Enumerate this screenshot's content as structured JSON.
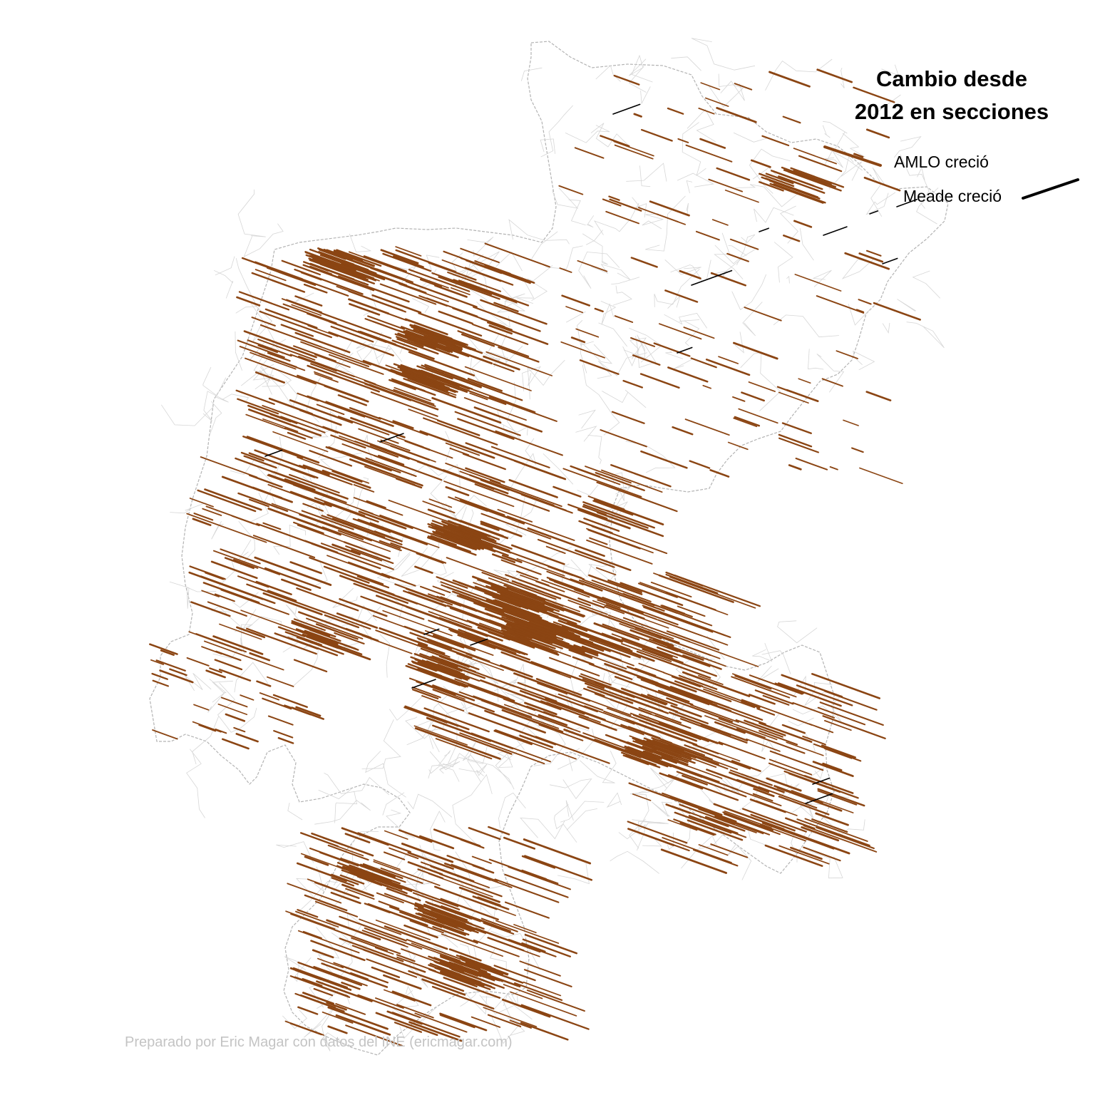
{
  "title": {
    "line1": "Cambio desde",
    "line2": "2012 en secciones"
  },
  "legend": {
    "items": [
      {
        "label": "AMLO creció",
        "color": "#8B4513"
      },
      {
        "label": "Meade creció",
        "color": "#000000"
      }
    ]
  },
  "credit": "Preparado por Eric Magar con datos del INE (ericmagar.com)",
  "colors": {
    "amlo": "#8B4513",
    "meade": "#000000",
    "border": "#b3b3b3",
    "section_lines": "#d6d6d6"
  }
}
